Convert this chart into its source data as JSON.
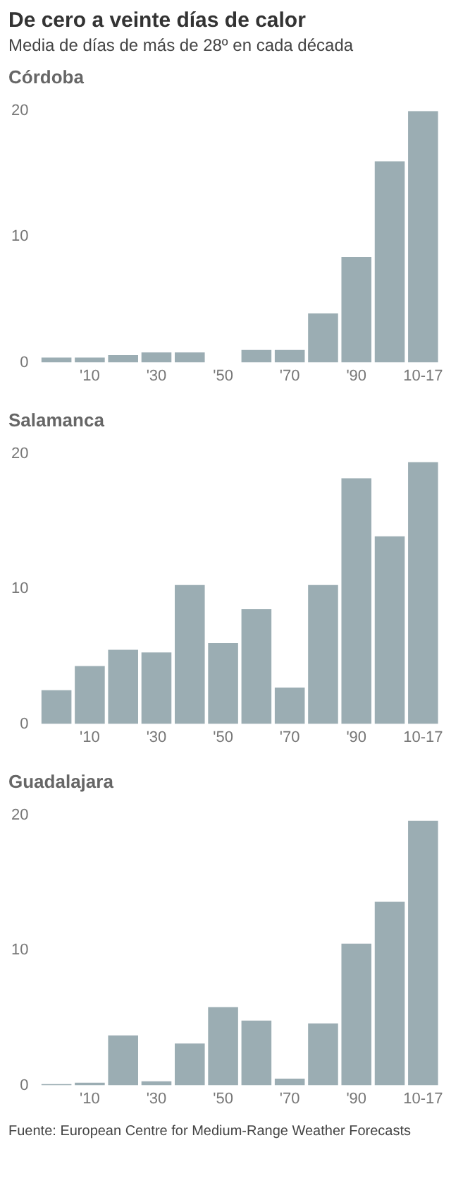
{
  "chart_data": [
    {
      "type": "bar",
      "title": "Córdoba",
      "annotations": [
        "De cero a veinte días de calor",
        "Media de días de más de 28º en cada década"
      ],
      "categories": [
        null,
        "'10",
        null,
        "'30",
        null,
        "'50",
        null,
        "'70",
        null,
        "'90",
        null,
        "10-17"
      ],
      "values": [
        0.4,
        0.4,
        0.6,
        0.8,
        0.8,
        0,
        1.0,
        1.0,
        3.9,
        8.4,
        16,
        20
      ],
      "color": "#9badb3",
      "ylim": [
        0,
        20
      ],
      "yticks": [
        0,
        10,
        20
      ],
      "grid": false
    },
    {
      "type": "bar",
      "title": "Salamanca",
      "categories": [
        null,
        "'10",
        null,
        "'30",
        null,
        "'50",
        null,
        "'70",
        null,
        "'90",
        null,
        "10-17"
      ],
      "values": [
        2.5,
        4.3,
        5.5,
        5.3,
        10.3,
        6.0,
        8.5,
        2.7,
        10.3,
        18.2,
        13.9,
        19.4
      ],
      "color": "#9badb3",
      "ylim": [
        0,
        20
      ],
      "yticks": [
        0,
        10,
        20
      ],
      "grid": false
    },
    {
      "type": "bar",
      "title": "Guadalajara",
      "annotations": [
        "Fuente: European Centre for Medium-Range Weather Forecasts"
      ],
      "categories": [
        null,
        "'10",
        null,
        "'30",
        null,
        "'50",
        null,
        "'70",
        null,
        "'90",
        null,
        "10-17"
      ],
      "values": [
        0.1,
        0.2,
        3.7,
        0.3,
        3.1,
        5.8,
        4.8,
        0.5,
        4.6,
        10.5,
        13.6,
        19.6
      ],
      "color": "#9badb3",
      "ylim": [
        0,
        20
      ],
      "yticks": [
        0,
        10,
        20
      ],
      "grid": false
    }
  ]
}
